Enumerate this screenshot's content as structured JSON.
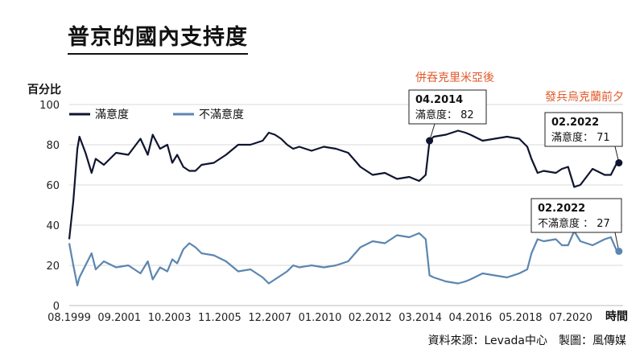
{
  "title": "普京的國內支持度",
  "source": "資料來源：Levada中心　製圖：風傳媒",
  "chart_data": {
    "type": "line",
    "ylabel": "百分比",
    "xlabel": "時間",
    "ylim": [
      0,
      100
    ],
    "yticks": [
      0,
      20,
      40,
      60,
      80,
      100
    ],
    "xtick_labels": [
      "08.1999",
      "09.2001",
      "10.2003",
      "11.2005",
      "12.2007",
      "01.2010",
      "02.2012",
      "03.2014",
      "04.2016",
      "05.2018",
      "07.2020"
    ],
    "xlim": [
      1999.583,
      2022.25
    ],
    "grid": "horizontal",
    "legend": "top-left",
    "series": [
      {
        "name": "滿意度",
        "color": "#0f1530",
        "x": [
          1999.583,
          1999.75,
          1999.917,
          2000.0,
          2000.25,
          2000.5,
          2000.667,
          2001.0,
          2001.5,
          2002.0,
          2002.5,
          2002.8,
          2003.0,
          2003.3,
          2003.6,
          2003.8,
          2004.0,
          2004.25,
          2004.5,
          2004.75,
          2005.0,
          2005.5,
          2006.0,
          2006.5,
          2007.0,
          2007.5,
          2007.75,
          2008.0,
          2008.25,
          2008.5,
          2008.75,
          2009.0,
          2009.5,
          2010.0,
          2010.5,
          2011.0,
          2011.5,
          2012.0,
          2012.5,
          2013.0,
          2013.5,
          2013.9,
          2014.0,
          2014.17,
          2014.33,
          2014.5,
          2015.0,
          2015.5,
          2015.8,
          2016.0,
          2016.5,
          2017.0,
          2017.5,
          2018.0,
          2018.33,
          2018.5,
          2018.75,
          2019.0,
          2019.5,
          2019.75,
          2020.0,
          2020.25,
          2020.5,
          2021.0,
          2021.5,
          2021.75,
          2022.0,
          2022.17
        ],
        "values": [
          33,
          52,
          78,
          84,
          76,
          66,
          73,
          70,
          76,
          75,
          83,
          75,
          85,
          78,
          80,
          71,
          75,
          69,
          67,
          67,
          70,
          71,
          75,
          80,
          80,
          82,
          86,
          85,
          83,
          80,
          78,
          79,
          77,
          79,
          78,
          76,
          69,
          65,
          66,
          63,
          64,
          62,
          63,
          65,
          82,
          84,
          85,
          87,
          86,
          85,
          82,
          83,
          84,
          83,
          79,
          73,
          66,
          67,
          66,
          68,
          69,
          59,
          60,
          68,
          65,
          65,
          71,
          70
        ]
      },
      {
        "name": "不滿意度",
        "color": "#5b86b0",
        "x": [
          1999.583,
          1999.75,
          1999.917,
          2000.0,
          2000.25,
          2000.5,
          2000.667,
          2001.0,
          2001.5,
          2002.0,
          2002.5,
          2002.8,
          2003.0,
          2003.3,
          2003.6,
          2003.8,
          2004.0,
          2004.25,
          2004.5,
          2004.75,
          2005.0,
          2005.5,
          2006.0,
          2006.5,
          2007.0,
          2007.5,
          2007.75,
          2008.0,
          2008.25,
          2008.5,
          2008.75,
          2009.0,
          2009.5,
          2010.0,
          2010.5,
          2011.0,
          2011.5,
          2012.0,
          2012.5,
          2013.0,
          2013.5,
          2013.9,
          2014.0,
          2014.17,
          2014.33,
          2014.5,
          2015.0,
          2015.5,
          2015.8,
          2016.0,
          2016.5,
          2017.0,
          2017.5,
          2018.0,
          2018.33,
          2018.5,
          2018.75,
          2019.0,
          2019.5,
          2019.75,
          2020.0,
          2020.25,
          2020.5,
          2021.0,
          2021.5,
          2021.75,
          2022.0,
          2022.17
        ],
        "values": [
          31,
          20,
          10,
          14,
          20,
          26,
          18,
          22,
          19,
          20,
          16,
          22,
          13,
          19,
          17,
          23,
          21,
          28,
          31,
          29,
          26,
          25,
          22,
          17,
          18,
          14,
          11,
          13,
          15,
          17,
          20,
          19,
          20,
          19,
          20,
          22,
          29,
          32,
          31,
          35,
          34,
          36,
          35,
          33,
          15,
          14,
          12,
          11,
          12,
          13,
          16,
          15,
          14,
          16,
          18,
          26,
          33,
          32,
          33,
          30,
          30,
          37,
          32,
          30,
          33,
          34,
          27,
          28
        ]
      }
    ],
    "callouts": [
      {
        "date": "04.2014",
        "text": "滿意度： 82",
        "series": 0,
        "x": 2014.33,
        "y": 82
      },
      {
        "date": "02.2022",
        "text": "滿意度： 71",
        "series": 0,
        "x": 2022.08,
        "y": 71
      },
      {
        "date": "02.2022",
        "text": "不滿意度 ： 27",
        "series": 1,
        "x": 2022.08,
        "y": 27
      }
    ],
    "events": [
      "併吞克里米亞後",
      "發兵烏克蘭前夕"
    ]
  }
}
